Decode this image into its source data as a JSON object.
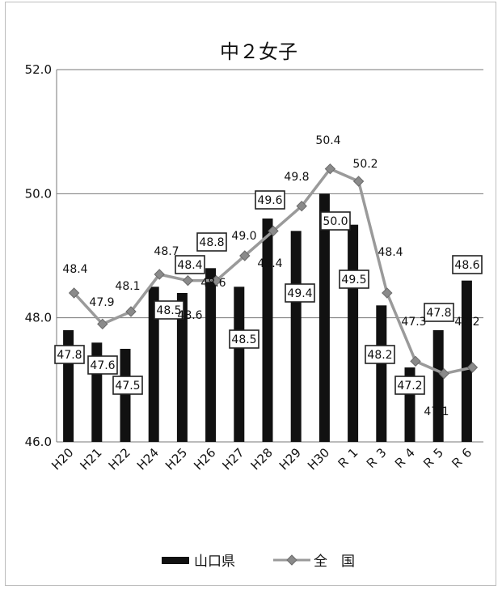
{
  "chart_data": {
    "type": "bar",
    "title": "中２女子",
    "categories": [
      "H20",
      "H21",
      "H22",
      "H24",
      "H25",
      "H26",
      "H27",
      "H28",
      "H29",
      "H30",
      "Ｒ 1",
      "Ｒ 3",
      "Ｒ 4",
      "Ｒ 5",
      "Ｒ 6"
    ],
    "series": [
      {
        "name": "山口県",
        "kind": "bar",
        "color": "#111111",
        "values": [
          47.8,
          47.6,
          47.5,
          48.5,
          48.4,
          48.8,
          48.5,
          49.6,
          49.4,
          50.0,
          49.5,
          48.2,
          47.2,
          47.8,
          48.6
        ],
        "label_texts": [
          "47.8",
          "47.6",
          "47.5",
          "48.5",
          "48.4",
          "48.8",
          "48.5",
          "49.6",
          "49.4",
          "50.0",
          "49.5",
          "48.2",
          "47.2",
          "47.8",
          "48.6"
        ]
      },
      {
        "name": "全　国",
        "kind": "line",
        "color": "#9a9a9a",
        "values": [
          48.4,
          47.9,
          48.1,
          48.7,
          48.6,
          48.6,
          49.0,
          49.4,
          49.8,
          50.4,
          50.2,
          48.4,
          47.3,
          47.1,
          47.2
        ],
        "label_texts": [
          "48.4",
          "47.9",
          "48.1",
          "48.7",
          "48.6",
          "48.6",
          "49.0",
          "49.4",
          "49.8",
          "50.4",
          "50.2",
          "48.4",
          "47.3",
          "47.1",
          "47.2"
        ]
      }
    ],
    "yticks": [
      "46.0",
      "48.0",
      "50.0",
      "52.0"
    ],
    "ylim": [
      46.0,
      52.0
    ],
    "xlabel": "",
    "ylabel": "",
    "grid": true,
    "legend": "bottom"
  }
}
